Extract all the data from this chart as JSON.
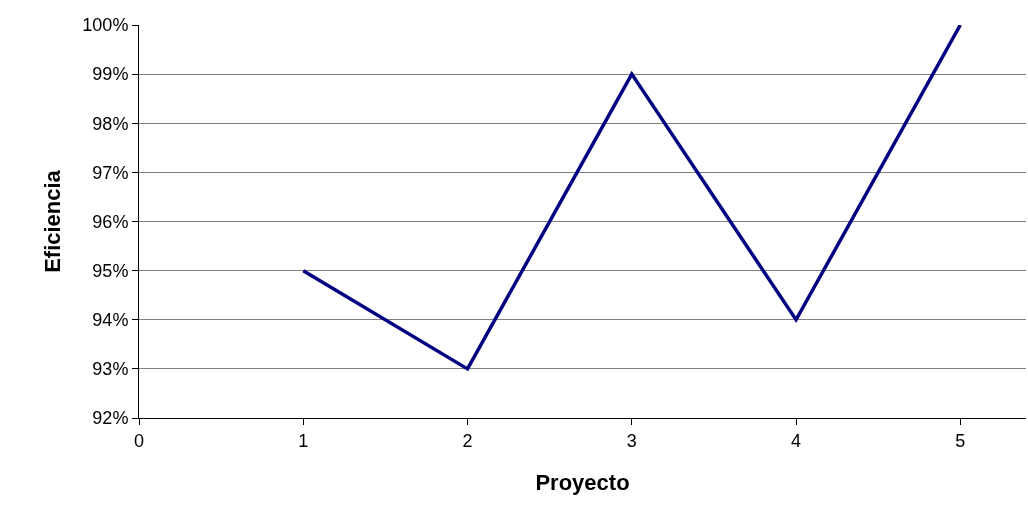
{
  "chart_data": {
    "type": "line",
    "xlabel": "Proyecto",
    "ylabel": "Eficiencia",
    "x": [
      1,
      2,
      3,
      4,
      5
    ],
    "series": [
      {
        "color": "#000080",
        "values": [
          95,
          93,
          99,
          94,
          100
        ]
      }
    ],
    "xlim": [
      0,
      5.4
    ],
    "xticks": [
      0,
      1,
      2,
      3,
      4,
      5
    ],
    "ylim": [
      92,
      100
    ],
    "yticks": [
      {
        "value": 92,
        "label": "92%"
      },
      {
        "value": 93,
        "label": "93%"
      },
      {
        "value": 94,
        "label": "94%"
      },
      {
        "value": 95,
        "label": "95%"
      },
      {
        "value": 96,
        "label": "96%"
      },
      {
        "value": 97,
        "label": "97%"
      },
      {
        "value": 98,
        "label": "98%"
      },
      {
        "value": 99,
        "label": "99%"
      },
      {
        "value": 100,
        "label": "100%"
      }
    ],
    "grid": "y",
    "marker": "none",
    "line_style": "solid"
  }
}
